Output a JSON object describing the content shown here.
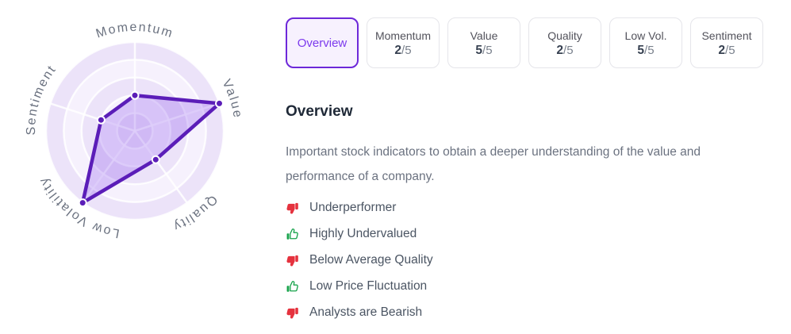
{
  "chart_data": {
    "type": "radar",
    "categories": [
      "Momentum",
      "Value",
      "Quality",
      "Low Volatility",
      "Sentiment"
    ],
    "values": [
      2,
      5,
      2,
      5,
      2
    ],
    "max": 5,
    "grid_rings": 5,
    "legend_position": "none"
  },
  "colors": {
    "accent_purple": "#6d28d9",
    "selected_tab_bg": "#f7f1fe",
    "selected_tab_text": "#7c3aed",
    "radar_stroke": "#5b1db8",
    "radar_fill": "rgba(124,58,237,0.25)",
    "radar_band_dark": "#ece3f9",
    "radar_band_light": "#f6f1fd",
    "radar_grid": "rgba(255,255,255,0.85)",
    "radar_label": "#6b7280",
    "positive_green": "#18a34b",
    "negative_red": "#e5323e"
  },
  "tabs": [
    {
      "id": "overview",
      "label": "Overview",
      "selected": true
    },
    {
      "id": "momentum",
      "label": "Momentum",
      "score": "2",
      "max": "/5"
    },
    {
      "id": "value",
      "label": "Value",
      "score": "5",
      "max": "/5"
    },
    {
      "id": "quality",
      "label": "Quality",
      "score": "2",
      "max": "/5"
    },
    {
      "id": "low-vol",
      "label": "Low Vol.",
      "score": "5",
      "max": "/5"
    },
    {
      "id": "sentiment",
      "label": "Sentiment",
      "score": "2",
      "max": "/5"
    }
  ],
  "section": {
    "title": "Overview",
    "description": "Important stock indicators to obtain a deeper understanding of the value and performance of a company."
  },
  "indicators": [
    {
      "sentiment": "negative",
      "icon": "thumbs-down-icon",
      "label": "Underperformer"
    },
    {
      "sentiment": "positive",
      "icon": "thumbs-up-icon",
      "label": "Highly Undervalued"
    },
    {
      "sentiment": "negative",
      "icon": "thumbs-down-icon",
      "label": "Below Average Quality"
    },
    {
      "sentiment": "positive",
      "icon": "thumbs-up-icon",
      "label": "Low Price Fluctuation"
    },
    {
      "sentiment": "negative",
      "icon": "thumbs-down-icon",
      "label": "Analysts are Bearish"
    }
  ]
}
